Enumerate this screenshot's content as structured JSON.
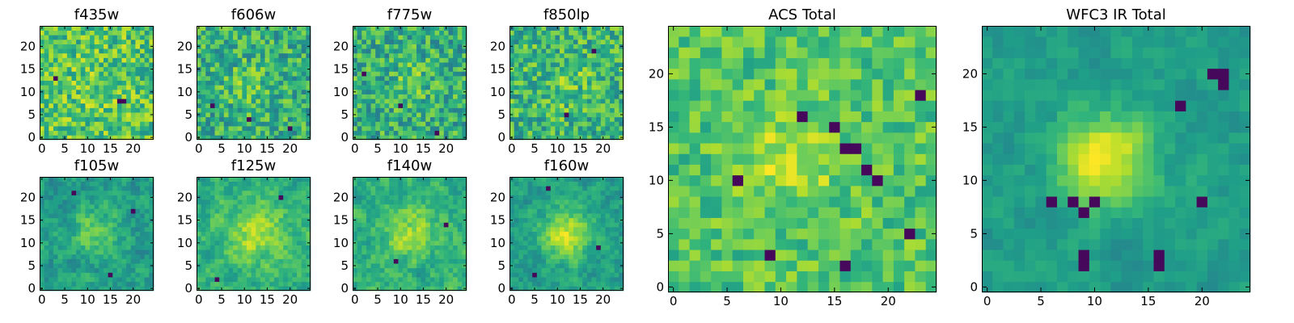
{
  "chart_data": [
    {
      "type": "heatmap",
      "title": "f435w",
      "grid_size": 25,
      "xlim": [
        0,
        24
      ],
      "ylim": [
        0,
        24
      ],
      "xticks": [
        0,
        5,
        10,
        15,
        20
      ],
      "yticks": [
        0,
        5,
        10,
        15,
        20
      ],
      "colormap": "viridis"
    },
    {
      "type": "heatmap",
      "title": "f606w",
      "grid_size": 25,
      "xlim": [
        0,
        24
      ],
      "ylim": [
        0,
        24
      ],
      "xticks": [
        0,
        5,
        10,
        15,
        20
      ],
      "yticks": [
        0,
        5,
        10,
        15,
        20
      ],
      "colormap": "viridis"
    },
    {
      "type": "heatmap",
      "title": "f775w",
      "grid_size": 25,
      "xlim": [
        0,
        24
      ],
      "ylim": [
        0,
        24
      ],
      "xticks": [
        0,
        5,
        10,
        15,
        20
      ],
      "yticks": [
        0,
        5,
        10,
        15,
        20
      ],
      "colormap": "viridis"
    },
    {
      "type": "heatmap",
      "title": "f850lp",
      "grid_size": 25,
      "xlim": [
        0,
        24
      ],
      "ylim": [
        0,
        24
      ],
      "xticks": [
        0,
        5,
        10,
        15,
        20
      ],
      "yticks": [
        0,
        5,
        10,
        15,
        20
      ],
      "colormap": "viridis"
    },
    {
      "type": "heatmap",
      "title": "f105w",
      "grid_size": 25,
      "xlim": [
        0,
        24
      ],
      "ylim": [
        0,
        24
      ],
      "xticks": [
        0,
        5,
        10,
        15,
        20
      ],
      "yticks": [
        0,
        5,
        10,
        15,
        20
      ],
      "colormap": "viridis"
    },
    {
      "type": "heatmap",
      "title": "f125w",
      "grid_size": 25,
      "xlim": [
        0,
        24
      ],
      "ylim": [
        0,
        24
      ],
      "xticks": [
        0,
        5,
        10,
        15,
        20
      ],
      "yticks": [
        0,
        5,
        10,
        15,
        20
      ],
      "colormap": "viridis"
    },
    {
      "type": "heatmap",
      "title": "f140w",
      "grid_size": 25,
      "xlim": [
        0,
        24
      ],
      "ylim": [
        0,
        24
      ],
      "xticks": [
        0,
        5,
        10,
        15,
        20
      ],
      "yticks": [
        0,
        5,
        10,
        15,
        20
      ],
      "colormap": "viridis"
    },
    {
      "type": "heatmap",
      "title": "f160w",
      "grid_size": 25,
      "xlim": [
        0,
        24
      ],
      "ylim": [
        0,
        24
      ],
      "xticks": [
        0,
        5,
        10,
        15,
        20
      ],
      "yticks": [
        0,
        5,
        10,
        15,
        20
      ],
      "colormap": "viridis"
    },
    {
      "type": "heatmap",
      "title": "ACS Total",
      "grid_size": 25,
      "xlim": [
        0,
        24
      ],
      "ylim": [
        0,
        24
      ],
      "xticks": [
        0,
        5,
        10,
        15,
        20
      ],
      "yticks": [
        0,
        5,
        10,
        15,
        20
      ],
      "colormap": "viridis"
    },
    {
      "type": "heatmap",
      "title": "WFC3 IR Total",
      "grid_size": 25,
      "xlim": [
        0,
        24
      ],
      "ylim": [
        0,
        24
      ],
      "xticks": [
        0,
        5,
        10,
        15,
        20
      ],
      "yticks": [
        0,
        5,
        10,
        15,
        20
      ],
      "colormap": "viridis"
    }
  ]
}
